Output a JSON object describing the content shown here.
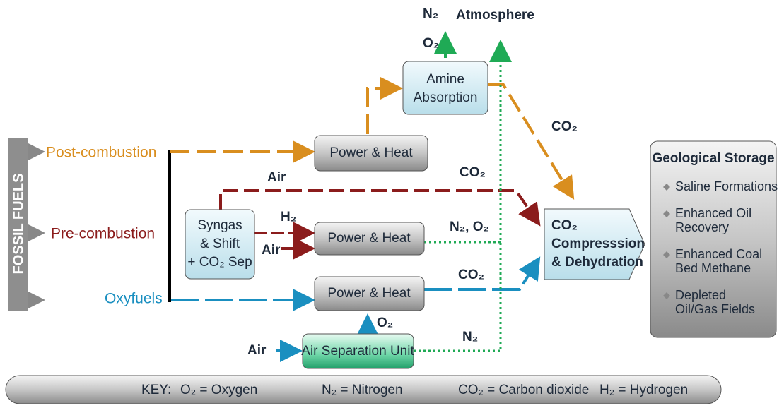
{
  "sidebar": "FOSSIL FUELS",
  "sources": [
    "Post-combustion",
    "Pre-combustion",
    "Oxyfuels"
  ],
  "nodes": {
    "power_heat_1": [
      "Power & Heat"
    ],
    "power_heat_2": [
      "Power & Heat"
    ],
    "power_heat_3": [
      "Power & Heat"
    ],
    "amine": [
      "Amine",
      "Absorption"
    ],
    "syngas": [
      "Syngas",
      "& Shift",
      "+ CO₂ Sep"
    ],
    "asu": [
      "Air Separation Unit"
    ],
    "compression": [
      "CO₂",
      "Compresssion",
      "& Dehydration"
    ]
  },
  "labels": {
    "top_n2": "N₂",
    "top_o2": "O₂",
    "atmosphere": "Atmosphere",
    "amine_co2": "CO₂",
    "pre_air": "Air",
    "pre_co2": "CO₂",
    "h2": "H₂",
    "syngas_air": "Air",
    "n2_o2": "N₂, O₂",
    "oxy_co2": "CO₂",
    "asu_o2": "O₂",
    "asu_air": "Air",
    "asu_n2": "N₂"
  },
  "storage": {
    "title": "Geological Storage",
    "items": [
      [
        "Saline Formations"
      ],
      [
        "Enhanced Oil",
        "Recovery"
      ],
      [
        "Enhanced Coal",
        "Bed Methane"
      ],
      [
        "Depleted",
        "Oil/Gas Fields"
      ]
    ]
  },
  "key": [
    "KEY:",
    "O₂ = Oxygen",
    "N₂ = Nitrogen",
    "CO₂ = Carbon dioxide",
    "H₂ = Hydrogen"
  ]
}
